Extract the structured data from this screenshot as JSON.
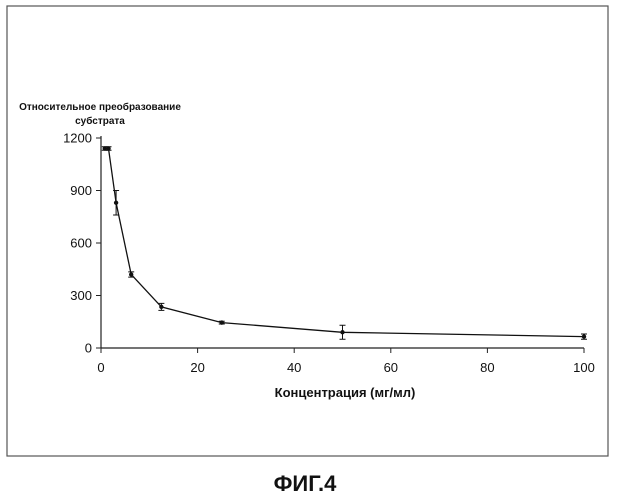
{
  "figure": {
    "caption": "ФИГ.4"
  },
  "chart_data": {
    "type": "line",
    "title": "",
    "ylabel": "Относительное преобразование субстрата",
    "ylabel_lines": [
      "Относительное преобразование",
      "субстрата"
    ],
    "xlabel": "Концентрация (мг/мл)",
    "xlim": [
      0,
      100
    ],
    "ylim": [
      0,
      1200
    ],
    "x_ticks": [
      0,
      20,
      40,
      60,
      80,
      100
    ],
    "y_ticks": [
      0,
      300,
      600,
      900,
      1200
    ],
    "grid": false,
    "legend": "none",
    "series": [
      {
        "x": [
          0.78,
          1.56,
          3.125,
          6.25,
          12.5,
          25,
          50,
          100
        ],
        "y": [
          1140,
          1140,
          830,
          420,
          235,
          145,
          90,
          65
        ],
        "err": [
          10,
          10,
          70,
          15,
          20,
          8,
          40,
          15
        ]
      }
    ],
    "colors": {
      "line": "#111111",
      "axis": "#222222",
      "frame": "#555555"
    }
  }
}
